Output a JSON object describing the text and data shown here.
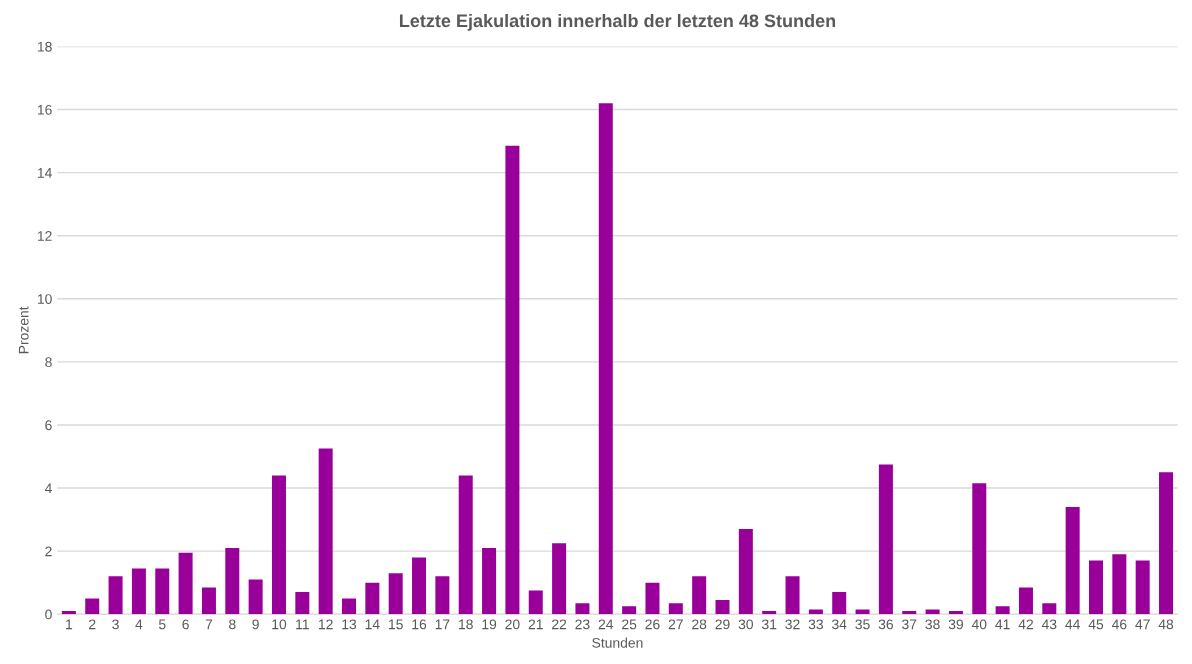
{
  "chart_data": {
    "type": "bar",
    "title": "Letzte Ejakulation innerhalb der letzten 48 Stunden",
    "xlabel": "Stunden",
    "ylabel": "Prozent",
    "categories": [
      "1",
      "2",
      "3",
      "4",
      "5",
      "6",
      "7",
      "8",
      "9",
      "10",
      "11",
      "12",
      "13",
      "14",
      "15",
      "16",
      "17",
      "18",
      "19",
      "20",
      "21",
      "22",
      "23",
      "24",
      "25",
      "26",
      "27",
      "28",
      "29",
      "30",
      "31",
      "32",
      "33",
      "34",
      "35",
      "36",
      "37",
      "38",
      "39",
      "40",
      "41",
      "42",
      "43",
      "44",
      "45",
      "46",
      "47",
      "48"
    ],
    "values": [
      0.1,
      0.5,
      1.2,
      1.45,
      1.45,
      1.95,
      0.85,
      2.1,
      1.1,
      4.4,
      0.7,
      5.25,
      0.5,
      1.0,
      1.3,
      1.8,
      1.2,
      4.4,
      2.1,
      14.85,
      0.75,
      2.25,
      0.35,
      16.2,
      0.25,
      1.0,
      0.35,
      1.2,
      0.45,
      2.7,
      0.1,
      1.2,
      0.15,
      0.7,
      0.15,
      4.75,
      0.1,
      0.15,
      0.1,
      4.15,
      0.25,
      0.85,
      0.35,
      3.4,
      1.7,
      1.9,
      1.7,
      4.5
    ],
    "color": "#990099",
    "ylim": [
      0,
      18
    ],
    "yticks": [
      0,
      2,
      4,
      6,
      8,
      10,
      12,
      14,
      16,
      18
    ],
    "grid": "y"
  }
}
